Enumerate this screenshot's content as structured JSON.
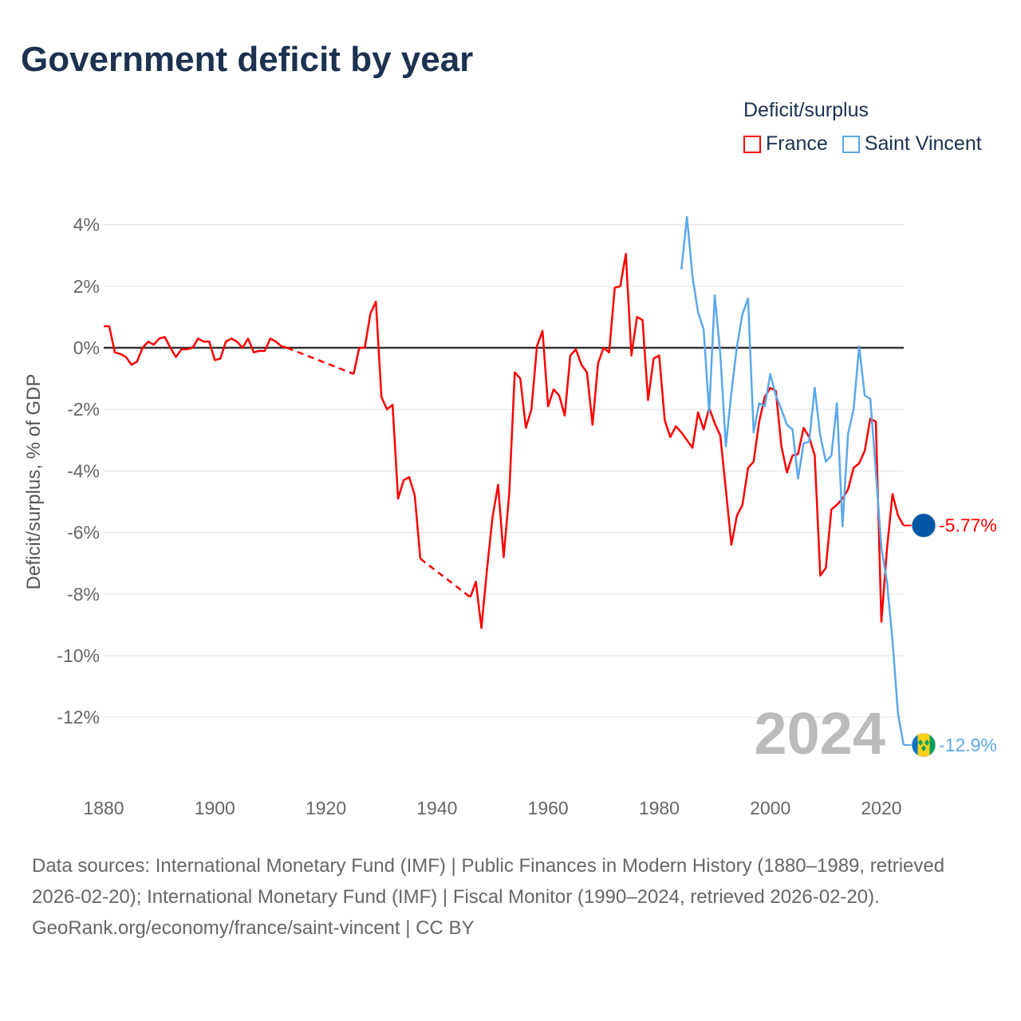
{
  "title": "Government deficit by year",
  "legend": {
    "title": "Deficit/surplus",
    "items": [
      "France",
      "Saint Vincent"
    ]
  },
  "colors": {
    "France": "#ff0000",
    "Saint Vincent": "#5aa8ec",
    "year_label": "#bbbbbb"
  },
  "year_label": "2024",
  "footer": {
    "sources": "Data sources: International Monetary Fund (IMF) | Public Finances in Modern History (1880–1989, retrieved 2026-02-20); International Monetary Fund (IMF) | Fiscal Monitor (1990–2024, retrieved 2026-02-20).",
    "link": "GeoRank.org/economy/france/saint-vincent | CC BY"
  },
  "chart_data": {
    "type": "line",
    "title": "Government deficit by year",
    "xlabel": "",
    "ylabel": "Deficit/surplus, % of GDP",
    "xlim": [
      1880,
      2024
    ],
    "ylim": [
      -13.5,
      4.5
    ],
    "xticks": [
      1880,
      1900,
      1920,
      1940,
      1960,
      1980,
      2000,
      2020
    ],
    "yticks": [
      4,
      2,
      0,
      -2,
      -4,
      -6,
      -8,
      -10,
      -12
    ],
    "ytick_labels": [
      "4%",
      "2%",
      "0%",
      "-2%",
      "-4%",
      "-6%",
      "-8%",
      "-10%",
      "-12%"
    ],
    "end_labels": {
      "France": "-5.77%",
      "Saint Vincent": "-12.9%"
    },
    "series": [
      {
        "name": "France",
        "x": [
          1880,
          1881,
          1882,
          1883,
          1884,
          1885,
          1886,
          1887,
          1888,
          1889,
          1890,
          1891,
          1892,
          1893,
          1894,
          1895,
          1896,
          1897,
          1898,
          1899,
          1900,
          1901,
          1902,
          1903,
          1904,
          1905,
          1906,
          1907,
          1908,
          1909,
          1910,
          1911,
          1912,
          1913,
          1925,
          1926,
          1927,
          1928,
          1929,
          1930,
          1931,
          1932,
          1933,
          1934,
          1935,
          1936,
          1937,
          1946,
          1947,
          1948,
          1949,
          1950,
          1951,
          1952,
          1953,
          1954,
          1955,
          1956,
          1957,
          1958,
          1959,
          1960,
          1961,
          1962,
          1963,
          1964,
          1965,
          1966,
          1967,
          1968,
          1969,
          1970,
          1971,
          1972,
          1973,
          1974,
          1975,
          1976,
          1977,
          1978,
          1979,
          1980,
          1981,
          1982,
          1983,
          1984,
          1985,
          1986,
          1987,
          1988,
          1989,
          1990,
          1991,
          1992,
          1993,
          1994,
          1995,
          1996,
          1997,
          1998,
          1999,
          2000,
          2001,
          2002,
          2003,
          2004,
          2005,
          2006,
          2007,
          2008,
          2009,
          2010,
          2011,
          2012,
          2013,
          2014,
          2015,
          2016,
          2017,
          2018,
          2019,
          2020,
          2021,
          2022,
          2023,
          2024
        ],
        "values": [
          0.7,
          0.7,
          -0.15,
          -0.2,
          -0.3,
          -0.55,
          -0.45,
          0,
          0.2,
          0.1,
          0.3,
          0.35,
          0,
          -0.3,
          -0.05,
          -0.05,
          0,
          0.3,
          0.2,
          0.2,
          -0.4,
          -0.35,
          0.2,
          0.3,
          0.2,
          0,
          0.3,
          -0.15,
          -0.1,
          -0.1,
          0.3,
          0.2,
          0.05,
          0,
          -0.85,
          0,
          0,
          1.1,
          1.5,
          -1.6,
          -2.0,
          -1.85,
          -4.9,
          -4.3,
          -4.2,
          -4.8,
          -6.85,
          -8.1,
          -7.6,
          -9.1,
          -7.2,
          -5.5,
          -4.45,
          -6.8,
          -4.75,
          -0.8,
          -1.0,
          -2.6,
          -2.0,
          0.05,
          0.55,
          -1.9,
          -1.35,
          -1.55,
          -2.2,
          -0.25,
          -0.05,
          -0.55,
          -0.8,
          -2.5,
          -0.5,
          0,
          -0.15,
          1.95,
          2.0,
          3.05,
          -0.25,
          1.0,
          0.9,
          -1.7,
          -0.35,
          -0.25,
          -2.35,
          -2.9,
          -2.55,
          -2.75,
          -3.0,
          -3.25,
          -2.1,
          -2.65,
          -1.95,
          -2.45,
          -2.85,
          -4.6,
          -6.4,
          -5.45,
          -5.1,
          -3.9,
          -3.7,
          -2.4,
          -1.6,
          -1.3,
          -1.4,
          -3.2,
          -4.05,
          -3.5,
          -3.45,
          -2.6,
          -2.9,
          -3.5,
          -7.4,
          -7.15,
          -5.25,
          -5.1,
          -4.9,
          -4.6,
          -3.9,
          -3.75,
          -3.35,
          -2.3,
          -2.4,
          -8.9,
          -6.55,
          -4.75,
          -5.45,
          -5.77
        ]
      },
      {
        "name": "Saint Vincent",
        "x": [
          1984,
          1985,
          1986,
          1987,
          1988,
          1989,
          1990,
          1991,
          1992,
          1993,
          1994,
          1995,
          1996,
          1997,
          1998,
          1999,
          2000,
          2001,
          2002,
          2003,
          2004,
          2005,
          2006,
          2007,
          2008,
          2009,
          2010,
          2011,
          2012,
          2013,
          2014,
          2015,
          2016,
          2017,
          2018,
          2019,
          2020,
          2021,
          2022,
          2023,
          2024
        ],
        "values": [
          2.55,
          4.25,
          2.3,
          1.15,
          0.6,
          -2.1,
          1.7,
          -0.2,
          -3.2,
          -1.45,
          0.05,
          1.1,
          1.6,
          -2.75,
          -1.8,
          -1.9,
          -0.85,
          -1.55,
          -2.0,
          -2.5,
          -2.65,
          -4.25,
          -3.1,
          -3.05,
          -1.3,
          -2.85,
          -3.7,
          -3.5,
          -1.8,
          -5.8,
          -2.8,
          -2.0,
          0.05,
          -1.55,
          -1.65,
          -4.0,
          -6.5,
          -7.6,
          -9.5,
          -11.9,
          -12.9
        ]
      }
    ]
  }
}
